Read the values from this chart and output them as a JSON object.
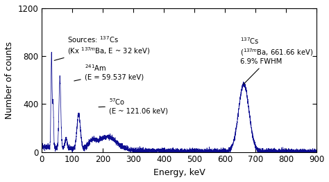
{
  "xlabel": "Energy, keV",
  "ylabel": "Number of counts",
  "xlim": [
    0,
    900
  ],
  "ylim": [
    0,
    1200
  ],
  "xticks": [
    0,
    100,
    200,
    300,
    400,
    500,
    600,
    700,
    800,
    900
  ],
  "yticks": [
    0,
    400,
    800,
    1200
  ],
  "line_color": "#00008B",
  "bg_color": "#ffffff",
  "noise_amp": 10,
  "spectrum": {
    "background": {
      "amp1": 30,
      "tau1": 150,
      "amp2": 15,
      "tau2": 600
    },
    "peaks": [
      {
        "mu": 32,
        "sigma": 1.8,
        "amp": 780
      },
      {
        "mu": 37,
        "sigma": 1.8,
        "amp": 380
      },
      {
        "mu": 59.5,
        "sigma": 3.0,
        "amp": 580
      },
      {
        "mu": 80,
        "sigma": 3.5,
        "amp": 80
      },
      {
        "mu": 121,
        "sigma": 5.5,
        "amp": 290
      },
      {
        "mu": 165,
        "sigma": 12,
        "amp": 55
      },
      {
        "mu": 215,
        "sigma": 30,
        "amp": 110
      },
      {
        "mu": 662,
        "sigma": 17,
        "amp": 560
      }
    ]
  }
}
